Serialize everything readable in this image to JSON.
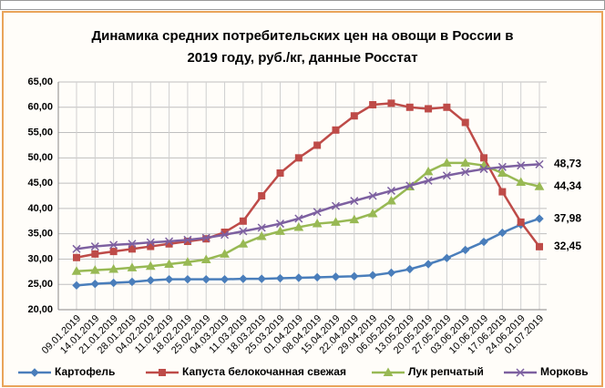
{
  "chart_data": {
    "type": "line",
    "title": [
      "Динамика средних потребительских цен на овощи в России в",
      "2019 году, руб./кг, данные Росстат"
    ],
    "categories": [
      "09.01.2019",
      "14.01.2019",
      "21.01.2019",
      "28.01.2019",
      "04.02.2019",
      "11.02.2019",
      "18.02.2019",
      "25.02.2019",
      "04.03.2019",
      "11.03.2019",
      "18.03.2019",
      "25.03.2019",
      "01.04.2019",
      "08.04.2019",
      "15.04.2019",
      "22.04.2019",
      "29.04.2019",
      "06.05.2019",
      "13.05.2019",
      "20.05.2019",
      "27.05.2019",
      "03.06.2019",
      "10.06.2019",
      "17.06.2019",
      "24.06.2019",
      "01.07.2019"
    ],
    "series": [
      {
        "name": "Картофель",
        "color": "#4a7ebb",
        "marker": "diamond",
        "values": [
          24.8,
          25.1,
          25.3,
          25.5,
          25.8,
          26.0,
          26.0,
          26.0,
          26.0,
          26.1,
          26.1,
          26.2,
          26.3,
          26.4,
          26.5,
          26.6,
          26.8,
          27.3,
          28.0,
          29.0,
          30.2,
          31.8,
          33.4,
          35.2,
          36.8,
          37.98
        ],
        "value_labels": [
          null,
          null,
          null,
          null,
          null,
          null,
          null,
          null,
          null,
          null,
          null,
          null,
          null,
          null,
          null,
          null,
          null,
          null,
          null,
          null,
          null,
          null,
          null,
          null,
          null,
          "37,98"
        ]
      },
      {
        "name": "Капуста белокочанная свежая",
        "color": "#be4b48",
        "marker": "square",
        "values": [
          30.3,
          31.0,
          31.5,
          32.0,
          32.5,
          33.0,
          33.5,
          34.0,
          35.3,
          37.5,
          42.5,
          47.0,
          50.0,
          52.5,
          55.5,
          58.3,
          60.5,
          60.8,
          60.0,
          59.7,
          60.0,
          57.0,
          50.0,
          43.3,
          37.3,
          32.45
        ],
        "value_labels": [
          null,
          null,
          null,
          null,
          null,
          null,
          null,
          null,
          null,
          null,
          null,
          null,
          null,
          null,
          null,
          null,
          null,
          null,
          null,
          null,
          null,
          null,
          null,
          null,
          null,
          "32,45"
        ]
      },
      {
        "name": "Лук репчатый",
        "color": "#98b954",
        "marker": "triangle",
        "values": [
          27.6,
          27.8,
          28.0,
          28.3,
          28.6,
          29.0,
          29.4,
          29.9,
          31.0,
          33.0,
          34.5,
          35.5,
          36.3,
          37.0,
          37.3,
          37.8,
          39.0,
          41.5,
          44.3,
          47.3,
          49.0,
          49.0,
          48.5,
          47.0,
          45.2,
          44.34
        ],
        "value_labels": [
          null,
          null,
          null,
          null,
          null,
          null,
          null,
          null,
          null,
          null,
          null,
          null,
          null,
          null,
          null,
          null,
          null,
          null,
          null,
          null,
          null,
          null,
          null,
          null,
          null,
          "44,34"
        ]
      },
      {
        "name": "Морковь",
        "color": "#7d60a0",
        "marker": "x",
        "values": [
          32.0,
          32.5,
          32.8,
          33.0,
          33.3,
          33.5,
          33.8,
          34.2,
          34.8,
          35.5,
          36.2,
          37.0,
          38.0,
          39.3,
          40.5,
          41.5,
          42.5,
          43.5,
          44.5,
          45.5,
          46.5,
          47.2,
          47.8,
          48.2,
          48.5,
          48.73
        ],
        "value_labels": [
          null,
          null,
          null,
          null,
          null,
          null,
          null,
          null,
          null,
          null,
          null,
          null,
          null,
          null,
          null,
          null,
          null,
          null,
          null,
          null,
          null,
          null,
          null,
          null,
          null,
          "48,73"
        ]
      }
    ],
    "ylim": [
      20,
      65
    ],
    "yticks": [
      {
        "value": 20,
        "label": "20,00"
      },
      {
        "value": 25,
        "label": "25,00"
      },
      {
        "value": 30,
        "label": "30,00"
      },
      {
        "value": 35,
        "label": "35,00"
      },
      {
        "value": 40,
        "label": "40,00"
      },
      {
        "value": 45,
        "label": "45,00"
      },
      {
        "value": 50,
        "label": "50,00"
      },
      {
        "value": 55,
        "label": "55,00"
      },
      {
        "value": 60,
        "label": "60,00"
      },
      {
        "value": 65,
        "label": "65,00"
      }
    ],
    "grid": true,
    "legend": "bottom"
  }
}
